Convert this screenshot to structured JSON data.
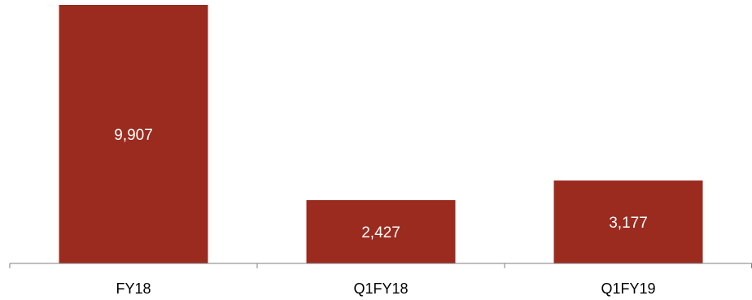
{
  "chart_data": {
    "type": "bar",
    "categories": [
      "FY18",
      "Q1FY18",
      "Q1FY19"
    ],
    "values": [
      9907,
      2427,
      3177
    ],
    "data_labels": [
      "9,907",
      "2,427",
      "3,177"
    ],
    "title": "",
    "xlabel": "",
    "ylabel": "",
    "ylim": [
      0,
      10000
    ],
    "grid": false,
    "legend": "none",
    "bar_color": "#9b2b1f",
    "axis_color": "#7f7f7f"
  }
}
